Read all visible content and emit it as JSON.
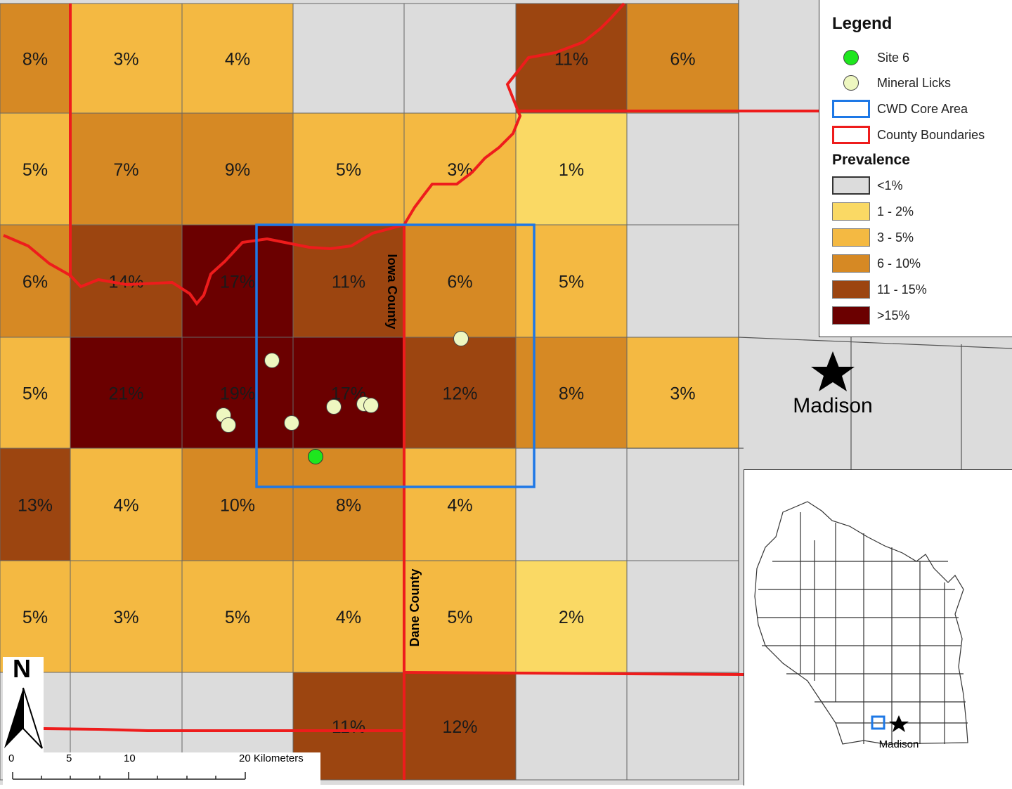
{
  "legend": {
    "title": "Legend",
    "site_label": "Site 6",
    "licks_label": "Mineral Licks",
    "core_label": "CWD Core Area",
    "county_label": "County Boundaries",
    "prevalence_title": "Prevalence",
    "classes": [
      {
        "label": "<1%",
        "color": "#dcdcdc"
      },
      {
        "label": "1 - 2%",
        "color": "#fad964"
      },
      {
        "label": "3 - 5%",
        "color": "#f4b942"
      },
      {
        "label": "6 - 10%",
        "color": "#d68924"
      },
      {
        "label": "11 - 15%",
        "color": "#9c4510"
      },
      {
        "label": ">15%",
        "color": "#6b0000"
      }
    ]
  },
  "grid": [
    [
      "8%",
      "3%",
      "4%",
      null,
      null,
      "11%",
      "6%"
    ],
    [
      "5%",
      "7%",
      "9%",
      "5%",
      "3%",
      "1%",
      null
    ],
    [
      "6%",
      "14%",
      "17%",
      "11%",
      "6%",
      "5%",
      null
    ],
    [
      "5%",
      "21%",
      "19%",
      "17%",
      "12%",
      "8%",
      "3%"
    ],
    [
      "13%",
      "4%",
      "10%",
      "8%",
      "4%",
      null,
      null
    ],
    [
      "5%",
      "3%",
      "5%",
      "4%",
      "5%",
      "2%",
      null
    ],
    [
      null,
      null,
      null,
      "11%",
      "12%",
      null,
      null
    ]
  ],
  "labels": {
    "iowa_county": "Iowa County",
    "dane_county": "Dane County",
    "city": "Madison",
    "inset_city": "Madison",
    "north": "N"
  },
  "scale": {
    "ticks": [
      "0",
      "5",
      "10"
    ],
    "end_label": "20 Kilometers"
  },
  "colors": {
    "county": "#ee1c1c",
    "core": "#1e78e6",
    "site": "#1ee61e",
    "lick": "#eef7c0"
  }
}
